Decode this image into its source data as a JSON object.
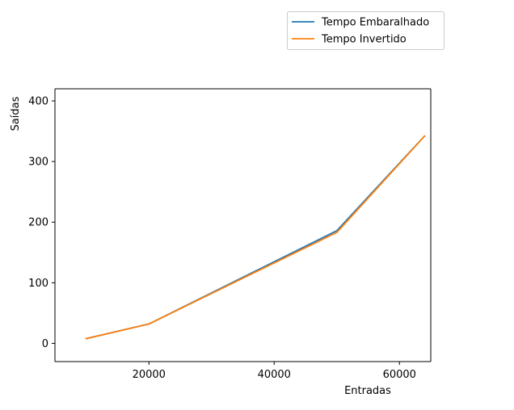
{
  "chart_data": {
    "type": "line",
    "title": "",
    "xlabel": "Entradas",
    "ylabel": "Saídas",
    "xlim": [
      5000,
      65000
    ],
    "ylim": [
      -30,
      420
    ],
    "xticks": [
      20000,
      40000,
      60000
    ],
    "yticks": [
      0,
      100,
      200,
      300,
      400
    ],
    "grid": false,
    "legend_position": "above-right",
    "series": [
      {
        "name": "Tempo Embaralhado",
        "color": "#1f77b4",
        "x": [
          10000,
          20000,
          50000,
          64000
        ],
        "y": [
          8,
          32,
          186,
          342
        ]
      },
      {
        "name": "Tempo Invertido",
        "color": "#ff7f0e",
        "x": [
          10000,
          20000,
          50000,
          64000
        ],
        "y": [
          8,
          32,
          183,
          342
        ]
      }
    ]
  }
}
